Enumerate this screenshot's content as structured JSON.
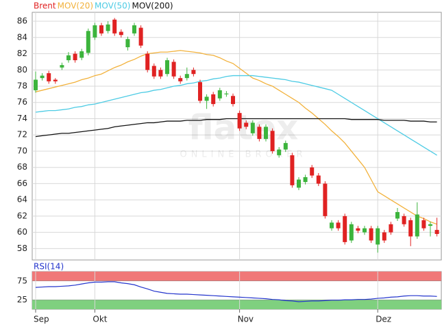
{
  "chart_data": [
    {
      "type": "candlestick",
      "legend": [
        "Brent",
        "MOV(20)",
        "MOV(50)",
        "MOV(200)"
      ],
      "watermark": [
        "flatex",
        "ONLINE BROKER"
      ],
      "categories": [
        "Sep",
        null,
        null,
        null,
        null,
        null,
        null,
        null,
        null,
        "Okt",
        null,
        null,
        null,
        null,
        null,
        null,
        null,
        null,
        null,
        null,
        null,
        null,
        null,
        null,
        null,
        null,
        null,
        null,
        null,
        null,
        null,
        "Nov",
        null,
        null,
        null,
        null,
        null,
        null,
        null,
        null,
        null,
        null,
        null,
        null,
        null,
        null,
        null,
        null,
        null,
        null,
        null,
        null,
        "Dez",
        null,
        null,
        null,
        null,
        null,
        null,
        null,
        null,
        null
      ],
      "up_color": "#3cb43c",
      "down_color": "#e02222",
      "open": [
        77.5,
        79.0,
        79.6,
        78.8,
        80.3,
        81.2,
        82.0,
        81.5,
        82.1,
        84.0,
        85.5,
        84.8,
        86.2,
        84.7,
        82.8,
        84.5,
        85.2,
        82.0,
        80.5,
        80.0,
        79.5,
        81.0,
        79.0,
        79.0,
        80.0,
        78.5,
        76.2,
        77.0,
        76.5,
        77.0,
        76.8,
        74.7,
        73.5,
        72.2,
        73.0,
        71.5,
        72.5,
        69.5,
        70.2,
        69.5,
        65.5,
        66.2,
        68.0,
        67.0,
        66.0,
        60.5,
        61.2,
        62.0,
        59.0,
        60.5,
        60.0,
        60.5,
        58.5,
        60.0,
        61.0,
        61.7,
        62.0,
        61.5,
        59.5,
        61.5,
        60.8,
        60.3
      ],
      "high": [
        79.8,
        79.6,
        79.9,
        79.0,
        80.9,
        82.2,
        82.3,
        82.6,
        85.1,
        85.8,
        85.8,
        86.0,
        86.4,
        85.0,
        84.1,
        85.8,
        85.5,
        82.3,
        80.8,
        80.3,
        81.5,
        81.3,
        79.3,
        80.3,
        80.3,
        78.8,
        77.0,
        77.3,
        77.8,
        77.4,
        77.1,
        75.0,
        73.8,
        73.8,
        73.3,
        73.3,
        72.8,
        70.5,
        71.3,
        69.8,
        66.8,
        67.1,
        68.3,
        67.3,
        66.3,
        61.5,
        61.5,
        62.3,
        61.3,
        60.8,
        60.8,
        60.8,
        60.8,
        60.3,
        61.3,
        63.0,
        62.3,
        61.8,
        63.7,
        61.8,
        61.3,
        61.8
      ],
      "low": [
        77.2,
        78.7,
        78.3,
        78.3,
        80.0,
        80.9,
        80.9,
        81.2,
        81.8,
        83.7,
        84.2,
        84.5,
        84.2,
        84.0,
        82.4,
        84.2,
        82.7,
        79.7,
        78.9,
        78.9,
        79.2,
        78.9,
        78.3,
        78.7,
        79.2,
        75.9,
        75.2,
        75.5,
        76.2,
        76.7,
        75.5,
        72.5,
        72.7,
        71.9,
        71.2,
        71.2,
        69.7,
        69.2,
        69.9,
        65.5,
        65.2,
        65.9,
        66.7,
        65.7,
        61.7,
        60.2,
        60.2,
        58.5,
        58.7,
        59.9,
        59.7,
        58.7,
        57.5,
        58.7,
        59.7,
        61.4,
        60.7,
        58.3,
        59.2,
        60.2,
        59.5,
        59.5
      ],
      "close": [
        78.8,
        79.3,
        78.6,
        78.6,
        80.6,
        81.8,
        81.2,
        82.3,
        84.8,
        85.5,
        84.5,
        85.6,
        84.5,
        84.3,
        83.8,
        85.5,
        83.0,
        80.0,
        79.2,
        79.2,
        81.2,
        79.2,
        78.6,
        79.5,
        79.5,
        76.2,
        76.7,
        75.8,
        77.5,
        77.1,
        75.8,
        72.8,
        73.0,
        73.5,
        71.5,
        73.0,
        70.0,
        70.2,
        71.0,
        65.8,
        66.5,
        66.8,
        67.0,
        66.0,
        62.0,
        61.2,
        60.5,
        58.8,
        61.0,
        60.2,
        60.5,
        59.0,
        60.5,
        59.0,
        60.0,
        62.5,
        61.0,
        59.5,
        62.2,
        60.5,
        61.0,
        59.8
      ],
      "series": [
        {
          "name": "MOV(20)",
          "color": "#f2b13a",
          "values": [
            77.3,
            77.5,
            77.7,
            77.9,
            78.1,
            78.3,
            78.5,
            78.8,
            79.0,
            79.3,
            79.5,
            79.9,
            80.3,
            80.6,
            81.0,
            81.3,
            81.7,
            82.0,
            82.1,
            82.2,
            82.2,
            82.3,
            82.4,
            82.3,
            82.2,
            82.1,
            81.9,
            81.8,
            81.5,
            81.1,
            80.8,
            80.2,
            79.6,
            79.0,
            78.7,
            78.3,
            78.0,
            77.5,
            77.0,
            76.5,
            76.0,
            75.3,
            74.7,
            74.0,
            73.3,
            72.5,
            71.8,
            71.0,
            70.0,
            69.0,
            68.0,
            66.5,
            65.0,
            64.5,
            64.0,
            63.5,
            63.0,
            62.5,
            62.0,
            61.7,
            61.3,
            61.0
          ]
        },
        {
          "name": "MOV(50)",
          "color": "#4ccbe4",
          "values": [
            74.8,
            74.9,
            75.0,
            75.0,
            75.1,
            75.2,
            75.4,
            75.5,
            75.7,
            75.8,
            76.0,
            76.2,
            76.4,
            76.6,
            76.8,
            77.0,
            77.2,
            77.3,
            77.5,
            77.6,
            77.8,
            78.0,
            78.1,
            78.3,
            78.4,
            78.6,
            78.7,
            78.9,
            79.0,
            79.2,
            79.3,
            79.3,
            79.3,
            79.3,
            79.2,
            79.1,
            79.0,
            78.9,
            78.8,
            78.6,
            78.5,
            78.3,
            78.1,
            77.9,
            77.7,
            77.5,
            77.0,
            76.5,
            76.0,
            75.5,
            75.0,
            74.5,
            74.0,
            73.5,
            73.0,
            72.5,
            72.0,
            71.5,
            71.0,
            70.5,
            70.0,
            69.5
          ]
        },
        {
          "name": "MOV(200)",
          "color": "#111111",
          "values": [
            71.8,
            71.9,
            72.0,
            72.1,
            72.2,
            72.2,
            72.3,
            72.4,
            72.5,
            72.6,
            72.7,
            72.8,
            73.0,
            73.1,
            73.2,
            73.3,
            73.4,
            73.5,
            73.5,
            73.6,
            73.7,
            73.7,
            73.7,
            73.8,
            73.8,
            73.8,
            73.9,
            73.9,
            73.9,
            74.0,
            74.0,
            74.0,
            74.0,
            74.0,
            74.0,
            74.0,
            74.0,
            74.0,
            74.0,
            74.0,
            74.0,
            74.0,
            74.0,
            74.0,
            74.0,
            74.0,
            74.0,
            74.0,
            73.9,
            73.9,
            73.9,
            73.9,
            73.9,
            73.8,
            73.8,
            73.8,
            73.8,
            73.7,
            73.7,
            73.7,
            73.6,
            73.6
          ]
        }
      ],
      "ylim": [
        56.6,
        87.1
      ],
      "yticks": [
        58,
        60,
        62,
        64,
        66,
        68,
        70,
        72,
        74,
        76,
        78,
        80,
        82,
        84,
        86
      ],
      "grid": true
    },
    {
      "type": "line",
      "title": "RSI(14)",
      "series": [
        {
          "name": "RSI(14)",
          "color": "#2233cc",
          "values": [
            58,
            59,
            60,
            60,
            61,
            62,
            64,
            67,
            70,
            72,
            72,
            73,
            73,
            70,
            68,
            65,
            59,
            54,
            48,
            45,
            42,
            41,
            40,
            40,
            39,
            38,
            37,
            36,
            35,
            34,
            33,
            32,
            31,
            30,
            29,
            28,
            26,
            25,
            23,
            22,
            20,
            21,
            22,
            22,
            23,
            24,
            24,
            25,
            25,
            26,
            26,
            27,
            29,
            30,
            32,
            33,
            35,
            36,
            36,
            35,
            35,
            34
          ]
        }
      ],
      "band_colors": [
        "#7fd07f",
        "#f07878"
      ],
      "ylim": [
        0,
        100
      ],
      "yticks": [
        25,
        75
      ],
      "grid": true
    }
  ]
}
